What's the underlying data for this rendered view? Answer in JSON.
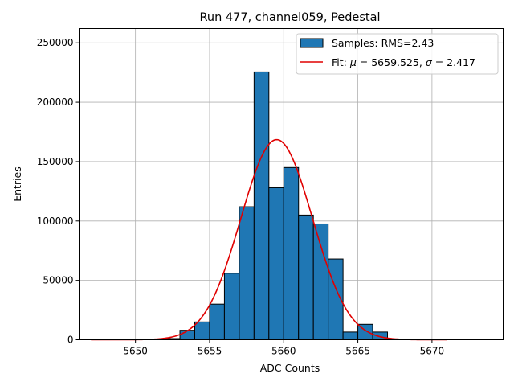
{
  "chart_data": {
    "type": "bar",
    "title": "Run 477, channel059, Pedestal",
    "xlabel": "ADC Counts",
    "ylabel": "Entries",
    "xlim": [
      5646.2,
      5674.8
    ],
    "ylim": [
      0,
      262000
    ],
    "grid": true,
    "legend_position": "top-right",
    "xticks": [
      5650,
      5655,
      5660,
      5665,
      5670
    ],
    "yticks": [
      0,
      50000,
      100000,
      150000,
      200000,
      250000
    ],
    "histogram": {
      "name": "Samples: RMS=2.43",
      "color": "#1f77b4",
      "bin_edges": [
        5652,
        5653,
        5654,
        5655,
        5656,
        5657,
        5658,
        5659,
        5660,
        5661,
        5662,
        5663,
        5664,
        5665,
        5666,
        5667
      ],
      "counts": [
        1000,
        8000,
        15000,
        30000,
        56000,
        112000,
        225500,
        128000,
        145000,
        105000,
        97500,
        68000,
        6500,
        13000,
        6500
      ]
    },
    "fit": {
      "name": "Fit: μ = 5659.525, σ = 2.417",
      "mu_label": "μ",
      "sigma_label": "σ",
      "fit_prefix": "Fit: ",
      "mu_text": " = 5659.525, ",
      "sigma_text": " = 2.417",
      "color": "#e00000",
      "mu": 5659.525,
      "sigma": 2.417,
      "amplitude": 168500,
      "x_range": [
        5647,
        5671
      ]
    }
  }
}
